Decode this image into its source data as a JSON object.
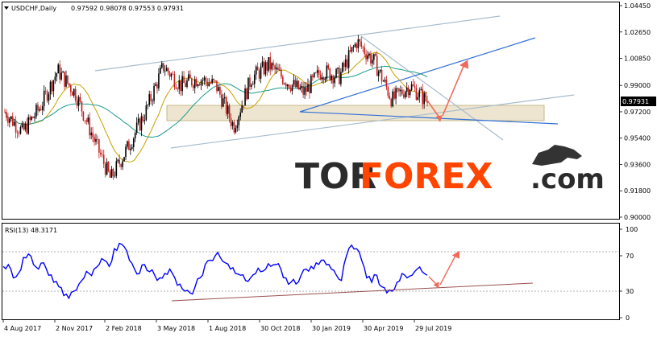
{
  "chart_data": [
    {
      "type": "candlestick",
      "header": {
        "symbol": "USDCHF,Daily",
        "quote": "0.97592 0.98078 0.97553 0.97931"
      },
      "current_price_label": "0.97931",
      "y_ticks": [
        "1.04450",
        "1.02650",
        "1.00850",
        "0.99000",
        "0.97200",
        "0.95400",
        "0.93600",
        "0.91800",
        "0.90000"
      ],
      "ylim": [
        0.9,
        1.0445
      ],
      "x_ticks": [
        "4 Aug 2017",
        "2 Nov 2017",
        "2 Feb 2018",
        "3 May 2018",
        "1 Aug 2018",
        "30 Oct 2018",
        "30 Jan 2019",
        "30 Apr 2019",
        "29 Jul 2019"
      ],
      "up_color": "#000000",
      "down_color": "#c81e1e",
      "ma_colors": {
        "fast": "#c8a000",
        "slow": "#1a9a8a"
      },
      "price_path": [
        {
          "t": "Aug 2017",
          "v": 0.972
        },
        {
          "t": "Sep 2017",
          "v": 0.958
        },
        {
          "t": "Oct 2017",
          "v": 0.975
        },
        {
          "t": "Nov 2017",
          "v": 1.0
        },
        {
          "t": "Dec 2017",
          "v": 0.985
        },
        {
          "t": "Jan 2018",
          "v": 0.955
        },
        {
          "t": "Feb 2018",
          "v": 0.926
        },
        {
          "t": "Mar 2018",
          "v": 0.948
        },
        {
          "t": "Apr 2018",
          "v": 0.972
        },
        {
          "t": "May 2018",
          "v": 1.003
        },
        {
          "t": "Jun 2018",
          "v": 0.99
        },
        {
          "t": "Jul 2018",
          "v": 0.995
        },
        {
          "t": "Aug 2018",
          "v": 0.99
        },
        {
          "t": "Sep 2018",
          "v": 0.962
        },
        {
          "t": "Oct 2018",
          "v": 0.995
        },
        {
          "t": "Nov 2018",
          "v": 1.004
        },
        {
          "t": "Dec 2018",
          "v": 0.993
        },
        {
          "t": "Jan 2019",
          "v": 0.985
        },
        {
          "t": "Feb 2019",
          "v": 1.0
        },
        {
          "t": "Mar 2019",
          "v": 0.996
        },
        {
          "t": "Apr 2019",
          "v": 1.02
        },
        {
          "t": "May 2019",
          "v": 1.006
        },
        {
          "t": "Jun 2019",
          "v": 0.98
        },
        {
          "t": "Jul 2019",
          "v": 0.99
        },
        {
          "t": "Aug 2019",
          "v": 0.979
        }
      ]
    },
    {
      "type": "line",
      "title": "RSI(13) 48.3171",
      "y_ticks": [
        "100",
        "70",
        "30",
        "0"
      ],
      "ylim": [
        0,
        100
      ],
      "line_color": "#0000ff",
      "values": [
        58,
        60,
        45,
        50,
        68,
        72,
        60,
        55,
        62,
        48,
        40,
        35,
        25,
        22,
        30,
        38,
        45,
        50,
        55,
        60,
        65,
        58,
        78,
        84,
        80,
        65,
        55,
        50,
        60,
        52,
        48,
        45,
        50,
        55,
        45,
        38,
        30,
        28,
        35,
        45,
        60,
        65,
        70,
        68,
        62,
        55,
        50,
        48,
        42,
        45,
        50,
        52,
        55,
        58,
        60,
        55,
        45,
        40,
        38,
        48,
        55,
        58,
        62,
        65,
        60,
        55,
        48,
        42,
        70,
        82,
        78,
        65,
        45,
        40,
        48,
        35,
        28,
        30,
        40,
        50,
        45,
        48,
        55,
        52,
        48
      ]
    }
  ],
  "logo": {
    "tor": "TOR",
    "forex": "FOREX",
    "com": ".com"
  }
}
